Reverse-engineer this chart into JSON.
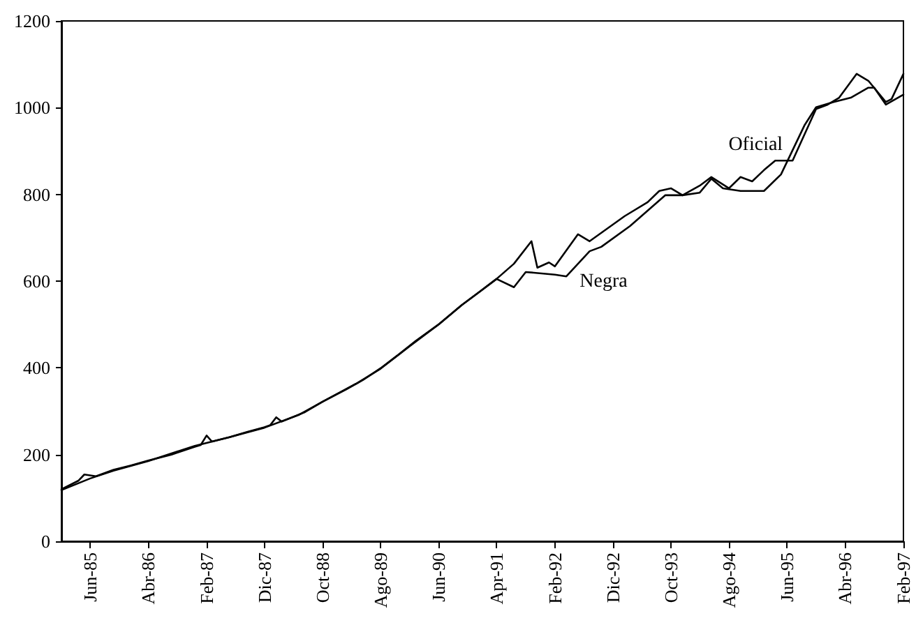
{
  "chart_data": {
    "type": "line",
    "legend": false,
    "grid": false,
    "marker": "none",
    "line_style": "solid",
    "xlim": [
      "1985-01",
      "1997-02"
    ],
    "xticks": [
      {
        "value": "1985-06",
        "label": "Jun-85"
      },
      {
        "value": "1986-04",
        "label": "Abr-86"
      },
      {
        "value": "1987-02",
        "label": "Feb-87"
      },
      {
        "value": "1987-12",
        "label": "Dic-87"
      },
      {
        "value": "1988-10",
        "label": "Oct-88"
      },
      {
        "value": "1989-08",
        "label": "Ago-89"
      },
      {
        "value": "1990-06",
        "label": "Jun-90"
      },
      {
        "value": "1991-04",
        "label": "Apr-91"
      },
      {
        "value": "1992-02",
        "label": "Feb-92"
      },
      {
        "value": "1992-12",
        "label": "Dic-92"
      },
      {
        "value": "1993-10",
        "label": "Oct-93"
      },
      {
        "value": "1994-08",
        "label": "Ago-94"
      },
      {
        "value": "1995-06",
        "label": "Jun-95"
      },
      {
        "value": "1996-04",
        "label": "Abr-96"
      },
      {
        "value": "1997-02",
        "label": "Feb-97"
      }
    ],
    "ylim": [
      0,
      1200
    ],
    "yticks": [
      0,
      200,
      400,
      600,
      800,
      1000,
      1200
    ],
    "series": [
      {
        "name": "Oficial",
        "color": "#000000",
        "x": [
          "1985-01",
          "1985-06",
          "1985-10",
          "1986-04",
          "1986-12",
          "1987-06",
          "1987-12",
          "1988-06",
          "1988-10",
          "1989-04",
          "1989-08",
          "1990-01",
          "1990-06",
          "1990-10",
          "1991-01",
          "1991-04",
          "1991-07",
          "1991-10",
          "1991-11",
          "1992-01",
          "1992-02",
          "1992-06",
          "1992-08",
          "1993-02",
          "1993-06",
          "1993-08",
          "1993-10",
          "1993-12",
          "1994-03",
          "1994-05",
          "1994-08",
          "1994-10",
          "1994-12",
          "1995-02",
          "1995-04",
          "1995-07",
          "1995-11",
          "1996-01",
          "1996-03",
          "1996-06",
          "1996-08",
          "1996-11",
          "1996-12",
          "1997-02"
        ],
        "values": [
          118,
          145,
          163,
          185,
          220,
          240,
          262,
          292,
          322,
          365,
          398,
          450,
          500,
          545,
          575,
          605,
          640,
          692,
          631,
          643,
          634,
          708,
          692,
          750,
          782,
          808,
          814,
          798,
          820,
          840,
          814,
          840,
          830,
          856,
          878,
          878,
          997,
          1007,
          1023,
          1078,
          1062,
          1013,
          1020,
          1078
        ]
      },
      {
        "name": "Negra",
        "color": "#000000",
        "x": [
          "1985-01",
          "1985-04",
          "1985-05",
          "1985-07",
          "1985-10",
          "1986-01",
          "1986-04",
          "1986-08",
          "1986-12",
          "1987-01",
          "1987-02",
          "1987-03",
          "1987-06",
          "1987-09",
          "1987-12",
          "1988-01",
          "1988-02",
          "1988-03",
          "1988-07",
          "1988-10",
          "1989-02",
          "1989-05",
          "1989-08",
          "1989-11",
          "1990-02",
          "1990-06",
          "1990-10",
          "1991-01",
          "1991-04",
          "1991-07",
          "1991-09",
          "1992-02",
          "1992-04",
          "1992-08",
          "1992-10",
          "1993-03",
          "1993-09",
          "1993-12",
          "1994-03",
          "1994-05",
          "1994-07",
          "1994-10",
          "1995-02",
          "1995-05",
          "1995-09",
          "1995-11",
          "1996-02",
          "1996-05",
          "1996-08",
          "1996-09",
          "1996-11",
          "1997-02"
        ],
        "values": [
          120,
          140,
          154,
          150,
          165,
          175,
          186,
          200,
          218,
          222,
          244,
          230,
          240,
          252,
          263,
          268,
          286,
          276,
          298,
          322,
          350,
          372,
          399,
          430,
          462,
          500,
          545,
          575,
          605,
          586,
          621,
          615,
          611,
          669,
          679,
          727,
          798,
          798,
          804,
          836,
          814,
          808,
          808,
          846,
          959,
          1001,
          1013,
          1023,
          1046,
          1046,
          1007,
          1030
        ]
      }
    ]
  }
}
